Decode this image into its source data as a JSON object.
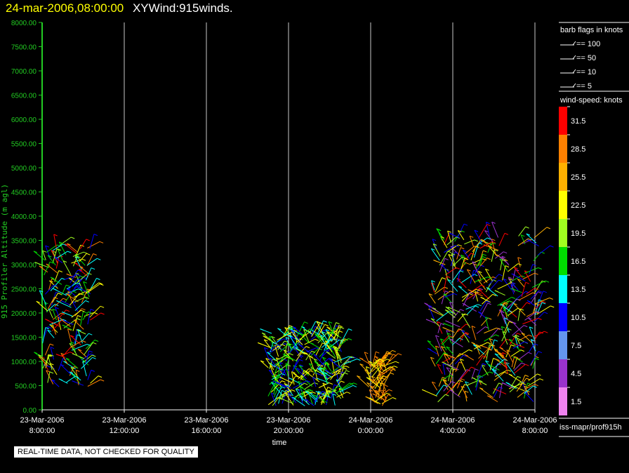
{
  "title": {
    "date": "24-mar-2006,08:00:00",
    "name": "XYWind:915winds."
  },
  "notice": "REAL-TIME DATA, NOT CHECKED FOR QUALITY",
  "footer_id": "iss-mapr/prof915h",
  "colors": {
    "axis": "#22cc22",
    "grid": "#c8c8c8",
    "bg": "#000000"
  },
  "chart_data": {
    "type": "scatter",
    "mark": "wind-barb",
    "xlabel": "time",
    "ylabel": "915 Profiler Altitude (m agl)",
    "ylim": [
      0,
      8000
    ],
    "ytick_labels": [
      "0.00",
      "500.00",
      "1000.00",
      "1500.00",
      "2000.00",
      "2500.00",
      "3000.00",
      "3500.00",
      "4000.00",
      "4500.00",
      "5000.00",
      "5500.00",
      "6000.00",
      "6500.00",
      "7000.00",
      "7500.00",
      "8000.00"
    ],
    "x_ticks": [
      {
        "date": "23-Mar-2006",
        "time": "8:00:00",
        "hours": 0
      },
      {
        "date": "23-Mar-2006",
        "time": "12:00:00",
        "hours": 4
      },
      {
        "date": "23-Mar-2006",
        "time": "16:00:00",
        "hours": 8
      },
      {
        "date": "23-Mar-2006",
        "time": "20:00:00",
        "hours": 12
      },
      {
        "date": "24-Mar-2006",
        "time": "0:00:00",
        "hours": 16
      },
      {
        "date": "24-Mar-2006",
        "time": "4:00:00",
        "hours": 20
      },
      {
        "date": "24-Mar-2006",
        "time": "8:00:00",
        "hours": 24
      }
    ],
    "xlim_hours": [
      0,
      24
    ],
    "grid": true,
    "barb_legend": {
      "title": "barb flags in knots",
      "entries": [
        "== 100",
        "== 50",
        "== 10",
        "== 5"
      ]
    },
    "color_scale": {
      "title": "wind-speed: knots",
      "bins": [
        {
          "label": "31.5",
          "color": "#ff0000"
        },
        {
          "label": "28.5",
          "color": "#ff8000"
        },
        {
          "label": "25.5",
          "color": "#ffb000"
        },
        {
          "label": "22.5",
          "color": "#ffff00"
        },
        {
          "label": "19.5",
          "color": "#a0ff20"
        },
        {
          "label": "16.5",
          "color": "#00dd00"
        },
        {
          "label": "13.5",
          "color": "#00ffff"
        },
        {
          "label": "10.5",
          "color": "#0000ff"
        },
        {
          "label": "7.5",
          "color": "#6495ed"
        },
        {
          "label": "4.5",
          "color": "#9932cc"
        },
        {
          "label": "1.5",
          "color": "#ee82ee"
        }
      ]
    },
    "clusters": [
      {
        "t_start": 0.0,
        "t_end": 2.4,
        "alt_min": 450,
        "alt_max": 3450,
        "dominant": [
          "#00dd00",
          "#a0ff20",
          "#ffff00",
          "#00ffff",
          "#0000ff",
          "#ff0000",
          "#ff8000"
        ]
      },
      {
        "t_start": 11.0,
        "t_end": 14.7,
        "alt_min": 80,
        "alt_max": 1600,
        "dominant": [
          "#ffff00",
          "#a0ff20",
          "#00dd00",
          "#00ffff",
          "#0000ff"
        ]
      },
      {
        "t_start": 15.9,
        "t_end": 16.8,
        "alt_min": 80,
        "alt_max": 1000,
        "dominant": [
          "#ffb000",
          "#ff8000",
          "#ffff00"
        ]
      },
      {
        "t_start": 19.1,
        "t_end": 24.2,
        "alt_min": 150,
        "alt_max": 3600,
        "dominant": [
          "#ff0000",
          "#ff8000",
          "#ffb000",
          "#ffff00",
          "#a0ff20",
          "#00dd00",
          "#00ffff",
          "#0000ff",
          "#9932cc"
        ]
      }
    ]
  }
}
